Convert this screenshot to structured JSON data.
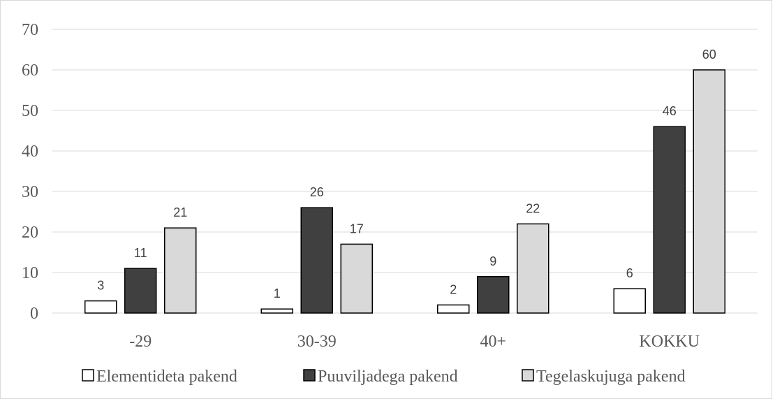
{
  "chart_data": {
    "type": "bar",
    "categories": [
      "-29",
      "30-39",
      "40+",
      "KOKKU"
    ],
    "series": [
      {
        "name": "Elementideta pakend",
        "values": [
          3,
          1,
          2,
          6
        ],
        "color": "#ffffff"
      },
      {
        "name": "Puuviljadega pakend",
        "values": [
          11,
          26,
          9,
          46
        ],
        "color": "#404040"
      },
      {
        "name": "Tegelaskujuga pakend",
        "values": [
          21,
          17,
          22,
          60
        ],
        "color": "#d9d9d9"
      }
    ],
    "y_ticks": [
      "0",
      "10",
      "20",
      "30",
      "40",
      "50",
      "60",
      "70"
    ],
    "ylim": [
      0,
      70
    ],
    "grid": true,
    "data_labels": true,
    "legend_position": "bottom",
    "title": "",
    "xlabel": "",
    "ylabel": ""
  }
}
